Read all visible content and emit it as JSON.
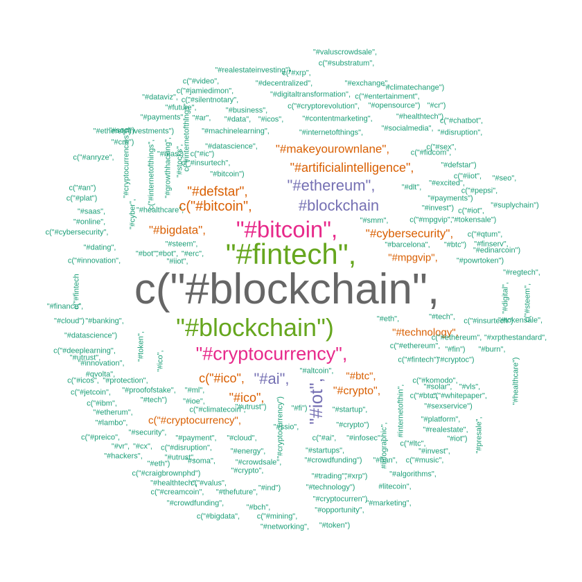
{
  "colors": {
    "teal": "#1b9e77",
    "orange": "#d95f02",
    "purple": "#7570b3",
    "magenta": "#e7298a",
    "green": "#66a61e",
    "gray": "#666666"
  },
  "words": [
    {
      "text": "c(\"#blockchain\",",
      "color": "gray"
    },
    {
      "text": "\"#fintech\",",
      "color": "green"
    },
    {
      "text": "\"#blockchain\")",
      "color": "green"
    },
    {
      "text": "\"#bitcoin\",",
      "color": "magenta"
    },
    {
      "text": "\"#cryptocurrency\",",
      "color": "magenta"
    },
    {
      "text": "#blockchain",
      "color": "purple"
    },
    {
      "text": "\"#ethereum\",",
      "color": "purple"
    },
    {
      "text": "c(\"#bitcoin\",",
      "color": "orange"
    },
    {
      "text": "\"#defstar\",",
      "color": "orange"
    },
    {
      "text": "\"#artificialintelligence\",",
      "color": "orange"
    },
    {
      "text": "\"#makeyourownlane\",",
      "color": "orange"
    },
    {
      "text": "\"#bigdata\",",
      "color": "orange"
    },
    {
      "text": "\"#cybersecurity\",",
      "color": "orange"
    },
    {
      "text": "\"#mpgvip\",",
      "color": "orange"
    },
    {
      "text": "\"#technology\",",
      "color": "orange"
    },
    {
      "text": "c(\"#ico\",",
      "color": "orange"
    },
    {
      "text": "\"#ai\",",
      "color": "purple"
    },
    {
      "text": "\"#btc\",",
      "color": "orange"
    },
    {
      "text": "\"#crypto\",",
      "color": "orange"
    },
    {
      "text": "\"#ico\",",
      "color": "orange"
    },
    {
      "text": "c(\"#cryptocurrency\",",
      "color": "orange"
    },
    {
      "text": "\"#iot\",",
      "color": "purple"
    },
    {
      "text": "\"#internetofthings\",",
      "color": "teal"
    },
    {
      "text": "\"#machinelearning\",",
      "color": "teal"
    },
    {
      "text": "\"#datascience\",",
      "color": "teal"
    },
    {
      "text": "c(\"#insurtech\",",
      "color": "teal"
    },
    {
      "text": "\"#bitcoin\")",
      "color": "teal"
    },
    {
      "text": "\"#steem\",",
      "color": "teal"
    },
    {
      "text": "\"#iiot\",",
      "color": "teal"
    },
    {
      "text": "\"#smm\",",
      "color": "teal"
    },
    {
      "text": "\"#eth\",",
      "color": "teal"
    },
    {
      "text": "\"#tech\",",
      "color": "teal"
    },
    {
      "text": "c(\"#ethereum\",",
      "color": "teal"
    },
    {
      "text": "c(\"#fintech\")",
      "color": "teal"
    },
    {
      "text": "\"#altcoin\",",
      "color": "teal"
    },
    {
      "text": "\"#startup\",",
      "color": "teal"
    },
    {
      "text": "\"#crypto\")",
      "color": "teal"
    },
    {
      "text": "c(\"#ai\",",
      "color": "teal"
    },
    {
      "text": "\"#infosec\",",
      "color": "teal"
    },
    {
      "text": "\"#startups\",",
      "color": "teal"
    },
    {
      "text": "\"#crowdfunding\")",
      "color": "teal"
    },
    {
      "text": "\"#ml\",",
      "color": "teal"
    },
    {
      "text": "\"#ioe\",",
      "color": "teal"
    },
    {
      "text": "c(\"#climatecoin\",",
      "color": "teal"
    },
    {
      "text": "\"#payment\",",
      "color": "teal"
    },
    {
      "text": "\"#cloud\",",
      "color": "teal"
    },
    {
      "text": "\"#energy\",",
      "color": "teal"
    },
    {
      "text": "\"#crowdsale\",",
      "color": "teal"
    },
    {
      "text": "\"#business\",",
      "color": "teal"
    },
    {
      "text": "\"#contentmarketing\",",
      "color": "teal"
    },
    {
      "text": "\"#digitaltransformation\",",
      "color": "teal"
    },
    {
      "text": "c(\"#cryptorevolution\",",
      "color": "teal"
    },
    {
      "text": "\"#decentralized\",",
      "color": "teal"
    },
    {
      "text": "\"#exchange\",",
      "color": "teal"
    },
    {
      "text": "c(\"#substratum\",",
      "color": "teal"
    },
    {
      "text": "\"#valuscrowdsale\",",
      "color": "teal"
    },
    {
      "text": "\"#realestateinvesting\")",
      "color": "teal"
    },
    {
      "text": "c(\"#xrp\",",
      "color": "teal"
    },
    {
      "text": "c(\"#video\",",
      "color": "teal"
    },
    {
      "text": "c(\"#jamiedimon\",",
      "color": "teal"
    },
    {
      "text": "c(\"#silentnotary\",",
      "color": "teal"
    },
    {
      "text": "c(\"#entertainment\",",
      "color": "teal"
    },
    {
      "text": "\"#climatechange\")",
      "color": "teal"
    },
    {
      "text": "\"#opensource\")",
      "color": "teal"
    },
    {
      "text": "\"#cr\")",
      "color": "teal"
    },
    {
      "text": "\"#healthtech\")",
      "color": "teal"
    },
    {
      "text": "c(\"#chatbot\",",
      "color": "teal"
    },
    {
      "text": "\"#socialmedia\",",
      "color": "teal"
    },
    {
      "text": "\"#disruption\",",
      "color": "teal"
    },
    {
      "text": "\"#dataviz\",",
      "color": "teal"
    },
    {
      "text": "\"#future\",",
      "color": "teal"
    },
    {
      "text": "\"#payments\",",
      "color": "teal"
    },
    {
      "text": "\"#ar\",",
      "color": "teal"
    },
    {
      "text": "\"#data\",",
      "color": "teal"
    },
    {
      "text": "\"#icos\",",
      "color": "teal"
    },
    {
      "text": "\"#soci\")",
      "color": "teal"
    },
    {
      "text": "\"#ethereu\")",
      "color": "teal"
    },
    {
      "text": "\"#investments\")",
      "color": "teal"
    },
    {
      "text": "\"#cro\")",
      "color": "teal"
    },
    {
      "text": "\"#mas\")",
      "color": "teal"
    },
    {
      "text": "c(\"#ic\")",
      "color": "teal"
    },
    {
      "text": "c(\"#sex\",",
      "color": "teal"
    },
    {
      "text": "c(\"#fidcom\",",
      "color": "teal"
    },
    {
      "text": "\"#defstar\")",
      "color": "teal"
    },
    {
      "text": "c(\"#iiot\",",
      "color": "teal"
    },
    {
      "text": "\"#excited\",",
      "color": "teal"
    },
    {
      "text": "\"#dlt\",",
      "color": "teal"
    },
    {
      "text": "\"#seo\",",
      "color": "teal"
    },
    {
      "text": "c(\"#pepsi\",",
      "color": "teal"
    },
    {
      "text": "\"#payments\")",
      "color": "teal"
    },
    {
      "text": "\"#invest\")",
      "color": "teal"
    },
    {
      "text": "c(\"#iot\",",
      "color": "teal"
    },
    {
      "text": "\"#suplychain\")",
      "color": "teal"
    },
    {
      "text": "\"#tokensale\")",
      "color": "teal"
    },
    {
      "text": "c(\"#mpgvip\",",
      "color": "teal"
    },
    {
      "text": "c(\"#qtum\",",
      "color": "teal"
    },
    {
      "text": "\"#finserv\",",
      "color": "teal"
    },
    {
      "text": "\"#barcelona\",",
      "color": "teal"
    },
    {
      "text": "\"#btc\")",
      "color": "teal"
    },
    {
      "text": "\"#edinarcoin\")",
      "color": "teal"
    },
    {
      "text": "\"#powrtoken\")",
      "color": "teal"
    },
    {
      "text": "\"#regtech\",",
      "color": "teal"
    },
    {
      "text": "c(\"#anryze\",",
      "color": "teal"
    },
    {
      "text": "c(\"#an\")",
      "color": "teal"
    },
    {
      "text": "c(\"#plat\")",
      "color": "teal"
    },
    {
      "text": "\"#saas\",",
      "color": "teal"
    },
    {
      "text": "\"#online\",",
      "color": "teal"
    },
    {
      "text": "c(\"#cybersecurity\",",
      "color": "teal"
    },
    {
      "text": "\"#healthcare\",",
      "color": "teal"
    },
    {
      "text": "\"#dating\",",
      "color": "teal"
    },
    {
      "text": "c(\"#innovation\",",
      "color": "teal"
    },
    {
      "text": "\"#bot\",",
      "color": "teal"
    },
    {
      "text": "\"#erc\",",
      "color": "teal"
    },
    {
      "text": "\"#finance\",",
      "color": "teal"
    },
    {
      "text": "\"#cloud\")",
      "color": "teal"
    },
    {
      "text": "\"#banking\",",
      "color": "teal"
    },
    {
      "text": "\"#datascience\")",
      "color": "teal"
    },
    {
      "text": "c(\"#deeplearning\",",
      "color": "teal"
    },
    {
      "text": "\"#utrust\",",
      "color": "teal"
    },
    {
      "text": "\"#innovation\",",
      "color": "teal"
    },
    {
      "text": "#qvolta\",",
      "color": "teal"
    },
    {
      "text": "c(\"#icos\",",
      "color": "teal"
    },
    {
      "text": "\"#protection\",",
      "color": "teal"
    },
    {
      "text": "c(\"#jetcoin\",",
      "color": "teal"
    },
    {
      "text": "\"#proofofstake\",",
      "color": "teal"
    },
    {
      "text": "\"#tech\")",
      "color": "teal"
    },
    {
      "text": "c(\"#ibm\",",
      "color": "teal"
    },
    {
      "text": "\"#etherum\",",
      "color": "teal"
    },
    {
      "text": "\"#lambo\",",
      "color": "teal"
    },
    {
      "text": "\"#security\",",
      "color": "teal"
    },
    {
      "text": "c(\"#preico\",",
      "color": "teal"
    },
    {
      "text": "\"#vr\",",
      "color": "teal"
    },
    {
      "text": "\"#cx\",",
      "color": "teal"
    },
    {
      "text": "\"#hackers\",",
      "color": "teal"
    },
    {
      "text": "c(\"#disruption\",",
      "color": "teal"
    },
    {
      "text": "\"#utrust\",",
      "color": "teal"
    },
    {
      "text": "\"#soma\",",
      "color": "teal"
    },
    {
      "text": "\"#eth\")",
      "color": "teal"
    },
    {
      "text": "c(\"#craigbrownphd\")",
      "color": "teal"
    },
    {
      "text": "\"#crypto\",",
      "color": "teal"
    },
    {
      "text": "\"#healthtech\",",
      "color": "teal"
    },
    {
      "text": "c(\"#valus\",",
      "color": "teal"
    },
    {
      "text": "c(\"#creamcoin\",",
      "color": "teal"
    },
    {
      "text": "\"#thefuture\",",
      "color": "teal"
    },
    {
      "text": "\"#ind\")",
      "color": "teal"
    },
    {
      "text": "\"#crowdfunding\",",
      "color": "teal"
    },
    {
      "text": "\"#bch\",",
      "color": "teal"
    },
    {
      "text": "c(\"#bigdata\",",
      "color": "teal"
    },
    {
      "text": "c(\"#mining\",",
      "color": "teal"
    },
    {
      "text": "\"#networking\",",
      "color": "teal"
    },
    {
      "text": "\"#token\")",
      "color": "teal"
    },
    {
      "text": "\"#opportunity\",",
      "color": "teal"
    },
    {
      "text": "\"#cryptocurren\")",
      "color": "teal"
    },
    {
      "text": "\"#technology\")",
      "color": "teal"
    },
    {
      "text": "\"#trading\",",
      "color": "teal"
    },
    {
      "text": "\"#xrp\")",
      "color": "teal"
    },
    {
      "text": "\"#marketing\",",
      "color": "teal"
    },
    {
      "text": "#litecoin\",",
      "color": "teal"
    },
    {
      "text": "\"#algorithms\",",
      "color": "teal"
    },
    {
      "text": "\"#ban\",",
      "color": "teal"
    },
    {
      "text": "c(\"#music\",",
      "color": "teal"
    },
    {
      "text": "c(\"#ltc\",",
      "color": "teal"
    },
    {
      "text": "\"#invest\",",
      "color": "teal"
    },
    {
      "text": "\"#iot\")",
      "color": "teal"
    },
    {
      "text": "\"#realestate\",",
      "color": "teal"
    },
    {
      "text": "\"#platform\",",
      "color": "teal"
    },
    {
      "text": "\"#sexservice\")",
      "color": "teal"
    },
    {
      "text": "c(\"#btc\",",
      "color": "teal"
    },
    {
      "text": "c(\"#whitepaper\",",
      "color": "teal"
    },
    {
      "text": "\"#solar\",",
      "color": "teal"
    },
    {
      "text": "\"#vls\",",
      "color": "teal"
    },
    {
      "text": "c(\"#komodo\",",
      "color": "teal"
    },
    {
      "text": "\"#cryptoc\")",
      "color": "teal"
    },
    {
      "text": "\"#burn\",",
      "color": "teal"
    },
    {
      "text": "\"#fin\")",
      "color": "teal"
    },
    {
      "text": "c(\"#ethereum\",",
      "color": "teal"
    },
    {
      "text": "\"#xrpthestandard\",",
      "color": "teal"
    },
    {
      "text": "c(\"#insurtech\")",
      "color": "teal"
    },
    {
      "text": "\"#tokensale\",",
      "color": "teal"
    },
    {
      "text": "\"#growthhacking\",",
      "color": "teal"
    },
    {
      "text": "\"#stocks\",",
      "color": "teal"
    },
    {
      "text": "c(\"#internetofthings\",",
      "color": "teal"
    },
    {
      "text": "c(\"#internetofthings\",",
      "color": "teal"
    },
    {
      "text": "\"#cryptocurrencies\",",
      "color": "teal"
    },
    {
      "text": "\"#cyber\",",
      "color": "teal"
    },
    {
      "text": "c(\"#fintech",
      "color": "teal"
    },
    {
      "text": "\"#token\",",
      "color": "teal"
    },
    {
      "text": "\"#ico\",",
      "color": "teal"
    },
    {
      "text": "\"#cryptocurrency\")",
      "color": "teal"
    },
    {
      "text": "#infographic\",",
      "color": "teal"
    },
    {
      "text": "#internetofthin\",",
      "color": "teal"
    },
    {
      "text": "\"#digital\",",
      "color": "teal"
    },
    {
      "text": "c(\"#steem\",",
      "color": "teal"
    },
    {
      "text": "\"#healthcare\")",
      "color": "teal"
    },
    {
      "text": "\"#presale\",",
      "color": "teal"
    },
    {
      "text": "\"#fi\")",
      "color": "teal"
    },
    {
      "text": "\"#ssio\",",
      "color": "teal"
    },
    {
      "text": "\"#utrust\")",
      "color": "teal"
    },
    {
      "text": "\"#bot\",",
      "color": "teal"
    }
  ]
}
